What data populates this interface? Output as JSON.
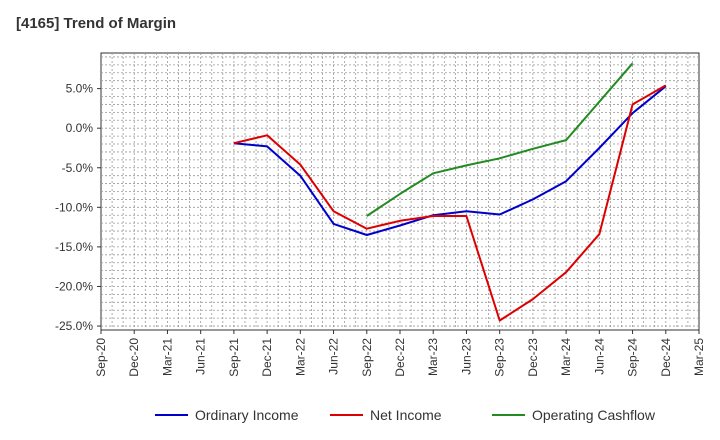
{
  "chart_data": {
    "type": "line",
    "title": "[4165]  Trend of Margin",
    "xlabel": "",
    "ylabel": "",
    "x": [
      "Sep-20",
      "Dec-20",
      "Mar-21",
      "Jun-21",
      "Sep-21",
      "Dec-21",
      "Mar-22",
      "Jun-22",
      "Sep-22",
      "Dec-22",
      "Mar-23",
      "Jun-23",
      "Sep-23",
      "Dec-23",
      "Mar-24",
      "Jun-24",
      "Sep-24",
      "Dec-24",
      "Mar-25"
    ],
    "ylim": [
      -25.5,
      9.5
    ],
    "yticks": [
      5,
      0,
      -5,
      -10,
      -15,
      -20,
      -25
    ],
    "ytick_labels": [
      "5.0%",
      "0.0%",
      "-5.0%",
      "-10.0%",
      "-15.0%",
      "-20.0%",
      "-25.0%"
    ],
    "grid": true,
    "legend_position": "bottom",
    "series": [
      {
        "name": "Ordinary Income",
        "color": "#0000cc",
        "values": [
          null,
          null,
          null,
          null,
          -1.9,
          -2.3,
          -6.0,
          -12.1,
          -13.5,
          -12.3,
          -11.0,
          -10.5,
          -10.9,
          -9.0,
          -6.7,
          -2.5,
          1.9,
          5.3,
          null
        ]
      },
      {
        "name": "Net Income",
        "color": "#dd0000",
        "values": [
          null,
          null,
          null,
          null,
          -1.9,
          -0.9,
          -4.6,
          -10.5,
          -12.7,
          -11.7,
          -11.1,
          -11.1,
          -24.3,
          -21.6,
          -18.2,
          -13.4,
          3.0,
          5.4,
          null
        ]
      },
      {
        "name": "Operating Cashflow",
        "color": "#228b22",
        "values": [
          null,
          null,
          null,
          null,
          null,
          null,
          null,
          null,
          -11.1,
          -8.3,
          -5.7,
          -4.7,
          -3.8,
          -2.6,
          -1.5,
          null,
          8.2,
          null,
          null
        ]
      }
    ]
  }
}
